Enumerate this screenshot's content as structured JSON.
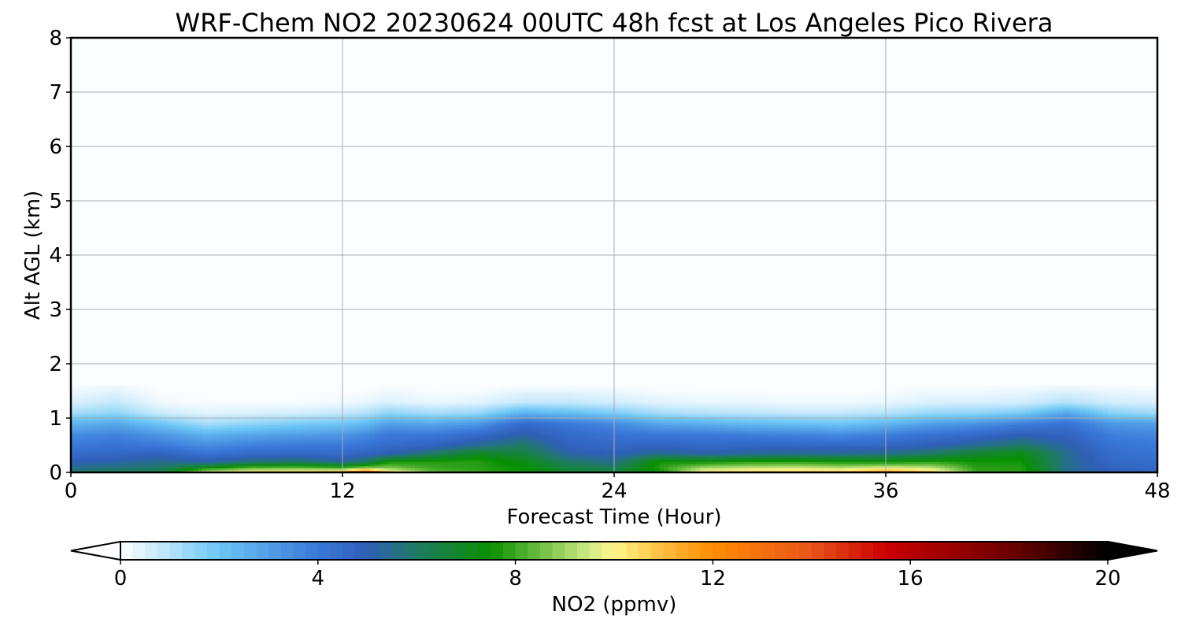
{
  "chart_data": {
    "type": "heatmap",
    "title": "WRF-Chem NO2  20230624 00UTC 48h fcst at Los Angeles Pico Rivera",
    "xlabel": "Forecast Time (Hour)",
    "ylabel": "Alt AGL (km)",
    "xlim": [
      0,
      48
    ],
    "ylim": [
      0,
      8
    ],
    "xticks": [
      0,
      12,
      24,
      36,
      48
    ],
    "yticks": [
      0,
      1,
      2,
      3,
      4,
      5,
      6,
      7,
      8
    ],
    "grid": true,
    "colorbar": {
      "label": "NO2  (ppmv)",
      "range": [
        0,
        20
      ],
      "ticks": [
        0,
        4,
        8,
        12,
        16,
        20
      ],
      "extend": "both",
      "orientation": "horizontal",
      "placement": "bottom",
      "colormap": [
        {
          "value": 0,
          "color": "#ffffff"
        },
        {
          "value": 2,
          "color": "#6cc6f5"
        },
        {
          "value": 4,
          "color": "#3a78d8"
        },
        {
          "value": 5,
          "color": "#2f5fb8"
        },
        {
          "value": 6,
          "color": "#1f7b62"
        },
        {
          "value": 7.5,
          "color": "#089000"
        },
        {
          "value": 9.5,
          "color": "#d2eb86"
        },
        {
          "value": 10,
          "color": "#fff78c"
        },
        {
          "value": 11,
          "color": "#ffbb3c"
        },
        {
          "value": 12,
          "color": "#ff8c00"
        },
        {
          "value": 14,
          "color": "#e7541a"
        },
        {
          "value": 15.5,
          "color": "#cc0000"
        },
        {
          "value": 18,
          "color": "#6e0000"
        },
        {
          "value": 20,
          "color": "#000000"
        }
      ],
      "under_color": "#ffffff",
      "over_color": "#000000"
    },
    "field": {
      "x": [
        0,
        2,
        4,
        6,
        8,
        10,
        12,
        13,
        14,
        16,
        18,
        20,
        22,
        24,
        26,
        28,
        30,
        32,
        34,
        36,
        38,
        40,
        42,
        44,
        46,
        48
      ],
      "heights": [
        0.0,
        0.08,
        0.2,
        0.35,
        0.5,
        0.7,
        0.9,
        1.1,
        1.3,
        1.6
      ],
      "values": [
        [
          6.0,
          5.5,
          5.0,
          4.5,
          4.0,
          3.5,
          2.5,
          1.2,
          0.5,
          0.1
        ],
        [
          6.2,
          5.8,
          5.2,
          4.7,
          4.2,
          3.7,
          2.8,
          1.5,
          0.8,
          0.2
        ],
        [
          6.5,
          6.0,
          5.5,
          4.8,
          4.0,
          3.2,
          2.0,
          0.7,
          0.2,
          0.0
        ],
        [
          10.0,
          7.5,
          5.2,
          4.2,
          3.5,
          2.5,
          1.2,
          0.4,
          0.1,
          0.0
        ],
        [
          10.8,
          8.5,
          5.8,
          4.5,
          3.8,
          2.8,
          1.5,
          0.5,
          0.1,
          0.0
        ],
        [
          11.0,
          8.6,
          6.0,
          4.6,
          4.0,
          3.0,
          1.8,
          0.6,
          0.1,
          0.0
        ],
        [
          11.8,
          8.3,
          5.4,
          4.5,
          4.0,
          3.2,
          2.0,
          0.8,
          0.2,
          0.0
        ],
        [
          15.8,
          9.0,
          6.0,
          4.8,
          4.2,
          3.5,
          2.3,
          1.0,
          0.3,
          0.0
        ],
        [
          11.0,
          8.8,
          7.6,
          5.0,
          4.5,
          4.0,
          3.0,
          1.5,
          0.5,
          0.1
        ],
        [
          8.5,
          8.0,
          7.8,
          6.0,
          4.8,
          4.0,
          2.8,
          1.2,
          0.3,
          0.0
        ],
        [
          8.0,
          7.8,
          7.8,
          7.0,
          5.5,
          4.5,
          3.2,
          1.4,
          0.4,
          0.0
        ],
        [
          7.5,
          7.5,
          7.2,
          6.5,
          6.0,
          5.2,
          4.5,
          2.5,
          0.8,
          0.1
        ],
        [
          6.8,
          6.5,
          6.0,
          5.2,
          4.8,
          4.5,
          4.0,
          2.2,
          0.8,
          0.1
        ],
        [
          6.8,
          6.2,
          5.5,
          5.0,
          4.6,
          4.2,
          3.5,
          1.8,
          0.6,
          0.1
        ],
        [
          7.2,
          7.8,
          7.6,
          5.5,
          4.8,
          4.0,
          2.8,
          1.2,
          0.4,
          0.0
        ],
        [
          10.5,
          9.2,
          7.5,
          5.2,
          4.6,
          4.0,
          2.6,
          1.0,
          0.3,
          0.0
        ],
        [
          10.8,
          9.5,
          7.8,
          5.4,
          4.7,
          3.8,
          2.3,
          0.9,
          0.3,
          0.0
        ],
        [
          11.0,
          9.6,
          7.8,
          5.5,
          4.7,
          3.7,
          2.2,
          0.8,
          0.2,
          0.0
        ],
        [
          11.2,
          9.4,
          7.6,
          5.5,
          4.6,
          3.5,
          2.0,
          0.8,
          0.2,
          0.0
        ],
        [
          12.5,
          9.8,
          7.5,
          5.6,
          4.7,
          3.8,
          2.4,
          1.0,
          0.3,
          0.0
        ],
        [
          11.0,
          9.5,
          7.8,
          6.0,
          5.0,
          4.2,
          3.0,
          1.4,
          0.5,
          0.1
        ],
        [
          8.0,
          7.8,
          7.6,
          6.8,
          5.5,
          4.5,
          3.3,
          1.5,
          0.5,
          0.1
        ],
        [
          7.8,
          7.8,
          7.6,
          7.2,
          6.0,
          5.0,
          3.8,
          1.8,
          0.6,
          0.1
        ],
        [
          5.5,
          5.5,
          5.5,
          5.5,
          5.2,
          4.8,
          4.2,
          2.8,
          1.0,
          0.2
        ],
        [
          5.0,
          4.8,
          4.6,
          4.4,
          4.2,
          3.8,
          3.2,
          1.6,
          0.6,
          0.1
        ],
        [
          4.8,
          4.6,
          4.4,
          4.2,
          4.0,
          3.6,
          3.0,
          1.3,
          0.5,
          0.1
        ]
      ],
      "background": 0.05
    }
  }
}
